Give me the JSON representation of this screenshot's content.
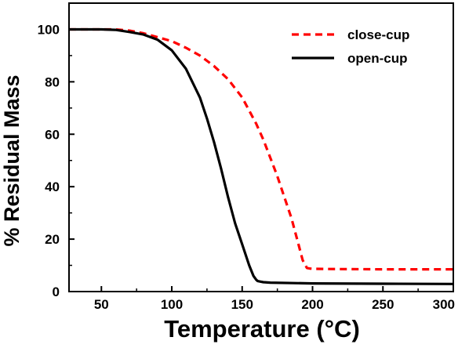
{
  "chart_data": {
    "type": "line",
    "title": "",
    "xlabel_text": "Temperature (",
    "xlabel_unit": "°C",
    "xlabel_close": ")",
    "ylabel": "% Residual Mass",
    "xlim": [
      27,
      300
    ],
    "ylim": [
      0,
      110
    ],
    "xticks": [
      50,
      100,
      150,
      200,
      250,
      300
    ],
    "yticks": [
      0,
      20,
      40,
      60,
      80,
      100
    ],
    "grid": false,
    "legend_position": "top-right",
    "series": [
      {
        "name": "close-cup",
        "color": "#ff0000",
        "style": "dashed",
        "x": [
          27,
          40,
          50,
          60,
          70,
          80,
          90,
          100,
          110,
          120,
          130,
          140,
          150,
          160,
          165,
          170,
          175,
          180,
          185,
          190,
          193,
          196,
          198,
          200,
          210,
          250,
          300
        ],
        "y": [
          100,
          100,
          100,
          100,
          99.5,
          98.5,
          97,
          95.5,
          93,
          90,
          86,
          81,
          74,
          64,
          58,
          51,
          44,
          36,
          28,
          18,
          12,
          9,
          8.8,
          8.7,
          8.6,
          8.5,
          8.5
        ]
      },
      {
        "name": "open-cup",
        "color": "#000000",
        "style": "solid",
        "x": [
          27,
          40,
          50,
          60,
          70,
          80,
          90,
          100,
          110,
          120,
          125,
          130,
          135,
          140,
          145,
          150,
          155,
          158,
          160,
          161,
          163,
          165,
          170,
          200,
          250,
          300
        ],
        "y": [
          100,
          100,
          100,
          99.8,
          99,
          98,
          96,
          92,
          85,
          74,
          66,
          57,
          47,
          36,
          26,
          18,
          10,
          6,
          4.5,
          4,
          3.8,
          3.6,
          3.4,
          3.1,
          3,
          2.9
        ]
      }
    ]
  }
}
